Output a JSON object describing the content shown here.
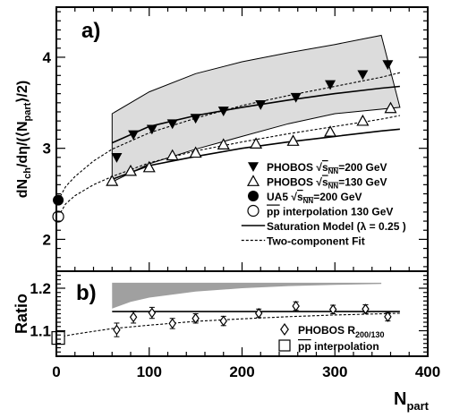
{
  "chart_data": [
    {
      "panel": "a)",
      "type": "scatter",
      "ylabel_parts": {
        "main": "dN",
        "sub1": "ch",
        "mid": "/dη/(⟨N",
        "sub2": "part",
        "end": "⟩/2)"
      },
      "xlim": [
        0,
        400
      ],
      "ylim": [
        1.65,
        4.55
      ],
      "yticks": [
        2,
        3,
        4
      ],
      "xticks": [
        0,
        100,
        200,
        300,
        400
      ],
      "series": [
        {
          "name": "PHOBOS √sNN=200 GeV",
          "marker": "triangle-down-filled",
          "x": [
            65,
            83,
            103,
            125,
            150,
            180,
            220,
            258,
            295,
            330,
            357
          ],
          "y": [
            2.9,
            3.15,
            3.21,
            3.27,
            3.33,
            3.41,
            3.48,
            3.56,
            3.7,
            3.81,
            3.92
          ]
        },
        {
          "name": "PHOBOS √sNN=130 GeV",
          "marker": "triangle-up-open",
          "x": [
            60,
            80,
            100,
            125,
            150,
            180,
            215,
            255,
            295,
            330,
            360
          ],
          "y": [
            2.64,
            2.75,
            2.79,
            2.92,
            2.95,
            3.04,
            3.05,
            3.08,
            3.18,
            3.3,
            3.44
          ]
        },
        {
          "name": "UA5 √sNN=200 GeV",
          "marker": "circle-filled",
          "x": [
            2
          ],
          "y": [
            2.43
          ]
        },
        {
          "name": "pp interpolation 130 GeV",
          "marker": "circle-open",
          "x": [
            2
          ],
          "y": [
            2.25
          ]
        }
      ],
      "band_200": {
        "x_upper": [
          60,
          100,
          150,
          200,
          250,
          300,
          350
        ],
        "y_upper": [
          3.38,
          3.62,
          3.82,
          3.95,
          4.05,
          4.14,
          4.24
        ],
        "x_lower": [
          370,
          300,
          250,
          200,
          150,
          100,
          60
        ],
        "y_lower": [
          3.45,
          3.38,
          3.27,
          3.13,
          2.99,
          2.83,
          2.63
        ]
      },
      "saturation_curves": [
        {
          "x": [
            60,
            100,
            150,
            200,
            250,
            300,
            350,
            370
          ],
          "y": [
            3.06,
            3.24,
            3.36,
            3.45,
            3.53,
            3.6,
            3.66,
            3.68
          ]
        },
        {
          "x": [
            60,
            100,
            150,
            200,
            250,
            300,
            350,
            370
          ],
          "y": [
            2.66,
            2.81,
            2.91,
            3.0,
            3.07,
            3.13,
            3.19,
            3.21
          ]
        }
      ],
      "two_component_fits": [
        {
          "x": [
            2,
            10,
            20,
            40,
            60,
            100,
            150,
            200,
            250,
            300,
            350,
            370
          ],
          "y": [
            2.43,
            2.58,
            2.69,
            2.86,
            2.99,
            3.17,
            3.33,
            3.47,
            3.58,
            3.68,
            3.78,
            3.83
          ]
        },
        {
          "x": [
            2,
            10,
            20,
            40,
            60,
            100,
            150,
            200,
            250,
            300,
            350,
            370
          ],
          "y": [
            2.25,
            2.39,
            2.48,
            2.6,
            2.69,
            2.84,
            2.97,
            3.07,
            3.16,
            3.24,
            3.32,
            3.36
          ]
        }
      ],
      "legend": {
        "placement": "bottom-right",
        "entries": [
          {
            "marker": "triangle-down-filled",
            "pre": "PHOBOS ",
            "rad": "s",
            "sub": "NN",
            "post": "=200 GeV"
          },
          {
            "marker": "triangle-up-open",
            "pre": "PHOBOS ",
            "rad": "s",
            "sub": "NN",
            "post": "=130 GeV"
          },
          {
            "marker": "circle-filled",
            "pre": "UA5 ",
            "rad": "s",
            "sub": "NN",
            "post": "=200 GeV"
          },
          {
            "marker": "circle-open",
            "pre": "",
            "bar": "pp",
            "post": " interpolation 130 GeV"
          },
          {
            "marker": "solid-line",
            "pre": "Saturation Model (λ = 0.25 )"
          },
          {
            "marker": "dashed-line",
            "pre": "Two-component Fit"
          }
        ]
      }
    },
    {
      "panel": "b)",
      "type": "scatter",
      "ylabel": "Ratio",
      "xlabel": "N",
      "xlabel_sub": "part",
      "xlim": [
        0,
        400
      ],
      "ylim": [
        1.04,
        1.24
      ],
      "yticks": [
        1.1,
        1.2
      ],
      "series": [
        {
          "name": "PHOBOS R200/130",
          "marker": "diamond-open",
          "x": [
            65,
            83,
            103,
            125,
            150,
            180,
            218,
            258,
            298,
            333,
            357
          ],
          "y": [
            1.102,
            1.132,
            1.142,
            1.117,
            1.129,
            1.123,
            1.141,
            1.158,
            1.15,
            1.151,
            1.133
          ],
          "err": [
            0.016,
            0.014,
            0.013,
            0.012,
            0.011,
            0.011,
            0.01,
            0.01,
            0.01,
            0.01,
            0.01
          ]
        },
        {
          "name": "pp interpolation",
          "marker": "square-open",
          "x": [
            2
          ],
          "y": [
            1.083
          ]
        }
      ],
      "band_upper_y": 1.213,
      "band_lower": {
        "x": [
          60,
          80,
          100,
          150,
          200,
          250,
          300,
          350
        ],
        "y": [
          1.152,
          1.168,
          1.178,
          1.192,
          1.2,
          1.205,
          1.208,
          1.21
        ]
      },
      "band_x_range": [
        60,
        350
      ],
      "saturation_line": {
        "x": [
          60,
          370
        ],
        "y": [
          1.145,
          1.145
        ]
      },
      "fit_curve": {
        "x": [
          2,
          20,
          60,
          100,
          150,
          200,
          250,
          300,
          370
        ],
        "y": [
          1.085,
          1.092,
          1.105,
          1.113,
          1.122,
          1.128,
          1.133,
          1.137,
          1.141
        ]
      },
      "legend": {
        "placement": "bottom-right",
        "entries": [
          {
            "marker": "diamond-open",
            "pre": "PHOBOS R",
            "sub": "200/130"
          },
          {
            "marker": "square-open",
            "bar": "pp",
            "post": "  interpolation"
          }
        ]
      }
    }
  ]
}
